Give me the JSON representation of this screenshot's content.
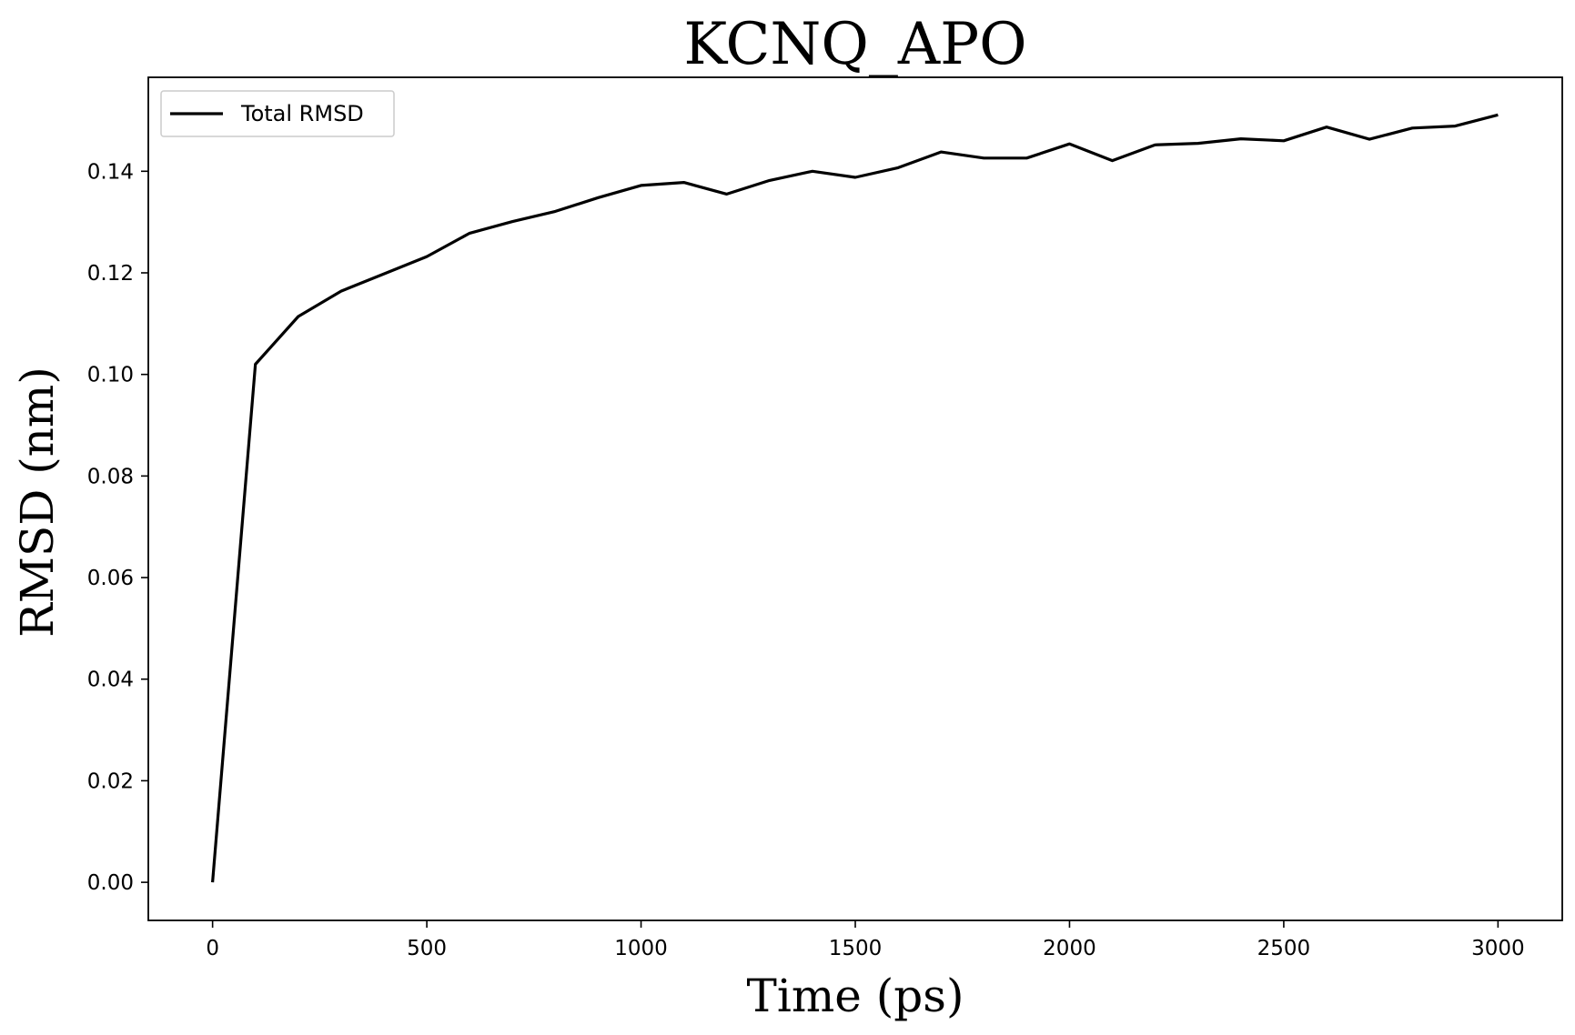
{
  "chart_data": {
    "type": "line",
    "title": "KCNQ_APO",
    "xlabel": "Time (ps)",
    "ylabel": "RMSD (nm)",
    "xlim": [
      -150,
      3150
    ],
    "ylim": [
      -0.0075,
      0.1585
    ],
    "xticks": [
      0,
      500,
      1000,
      1500,
      2000,
      2500,
      3000
    ],
    "xtick_labels": [
      "0",
      "500",
      "1000",
      "1500",
      "2000",
      "2500",
      "3000"
    ],
    "yticks": [
      0.0,
      0.02,
      0.04,
      0.06,
      0.08,
      0.1,
      0.12,
      0.14
    ],
    "ytick_labels": [
      "0.00",
      "0.02",
      "0.04",
      "0.06",
      "0.08",
      "0.10",
      "0.12",
      "0.14"
    ],
    "grid": false,
    "legend_position": "top-left",
    "series": [
      {
        "name": "Total RMSD",
        "color": "#000000",
        "x": [
          0,
          100,
          200,
          300,
          400,
          500,
          600,
          700,
          800,
          900,
          1000,
          1100,
          1200,
          1300,
          1400,
          1500,
          1600,
          1700,
          1800,
          1900,
          2000,
          2100,
          2200,
          2300,
          2400,
          2500,
          2600,
          2700,
          2800,
          2900,
          3000
        ],
        "y": [
          0.0,
          0.102,
          0.1114,
          0.1164,
          0.1198,
          0.1232,
          0.1278,
          0.1301,
          0.1321,
          0.1348,
          0.1372,
          0.1378,
          0.1355,
          0.1382,
          0.14,
          0.1388,
          0.1407,
          0.1438,
          0.1426,
          0.1426,
          0.1454,
          0.1421,
          0.1452,
          0.1455,
          0.1464,
          0.146,
          0.1487,
          0.1463,
          0.1485,
          0.1489,
          0.1511
        ]
      }
    ]
  }
}
